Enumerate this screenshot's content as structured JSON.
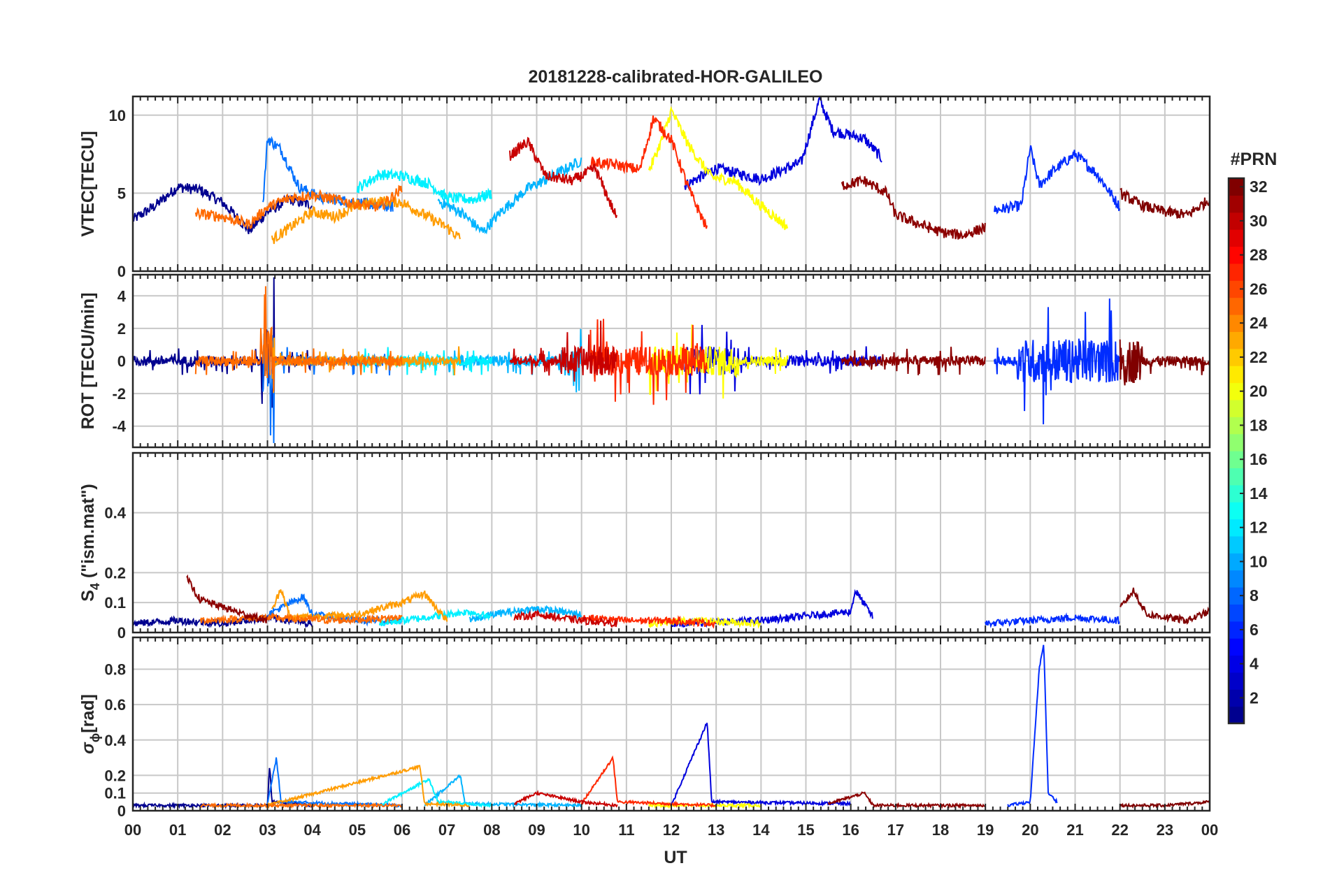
{
  "chart_data": {
    "type": "line",
    "title": "20181228-calibrated-HOR-GALILEO",
    "xlabel": "UT",
    "x_range_hours": [
      0,
      24
    ],
    "x_tick_labels": [
      "00",
      "01",
      "02",
      "03",
      "04",
      "05",
      "06",
      "07",
      "08",
      "09",
      "10",
      "11",
      "12",
      "13",
      "14",
      "15",
      "16",
      "17",
      "18",
      "19",
      "20",
      "21",
      "22",
      "23",
      "00"
    ],
    "grid": true,
    "colorbar": {
      "title": "#PRN",
      "colormap": "jet",
      "range": [
        1,
        32
      ],
      "ticks": [
        2,
        4,
        6,
        8,
        10,
        12,
        14,
        16,
        18,
        20,
        22,
        24,
        26,
        28,
        30,
        32
      ],
      "placement": "right"
    },
    "panels": [
      {
        "id": "vtec",
        "ylabel": "VTEC[TECU]",
        "ylim": [
          0,
          11.2
        ],
        "yticks": [
          0,
          5,
          10
        ],
        "ytick_labels": [
          "0",
          "5",
          "10"
        ]
      },
      {
        "id": "rot",
        "ylabel": "ROT [TECU/min]",
        "ylim": [
          -5.3,
          5.3
        ],
        "yticks": [
          -4,
          -2,
          0,
          2,
          4
        ],
        "ytick_labels": [
          "-4",
          "-2",
          "0",
          "2",
          "4"
        ]
      },
      {
        "id": "s4",
        "ylabel_main": "S",
        "ylabel_sub": "4",
        "ylabel_rest": " (\"ism.mat\")",
        "ylim": [
          0,
          0.6
        ],
        "yticks": [
          0,
          0.1,
          0.2,
          0.4
        ],
        "ytick_labels": [
          "0",
          "0.1",
          "0.2",
          "0.4"
        ]
      },
      {
        "id": "sigma",
        "ylabel_main": "σ",
        "ylabel_sub": "ϕ",
        "ylabel_rest": "[rad]",
        "ylim": [
          0,
          0.98
        ],
        "yticks": [
          0,
          0.1,
          0.2,
          0.4,
          0.6,
          0.8
        ],
        "ytick_labels": [
          "0",
          "0.1",
          "0.2",
          "0.4",
          "0.6",
          "0.8"
        ]
      }
    ],
    "series": [
      {
        "prn": 1,
        "color": "#00008f",
        "vtec": [
          [
            0.0,
            3.3
          ],
          [
            0.5,
            4.2
          ],
          [
            1.0,
            5.4
          ],
          [
            1.5,
            5.2
          ],
          [
            2.0,
            4.4
          ],
          [
            2.6,
            2.6
          ],
          [
            3.0,
            3.8
          ],
          [
            3.5,
            4.6
          ],
          [
            4.0,
            4.2
          ]
        ],
        "s4": [
          [
            0.0,
            0.03
          ],
          [
            1.0,
            0.04
          ],
          [
            2.0,
            0.03
          ],
          [
            3.0,
            0.05
          ],
          [
            4.0,
            0.03
          ]
        ],
        "sigma": [
          [
            0.0,
            0.03
          ],
          [
            3.0,
            0.03
          ],
          [
            3.05,
            0.26
          ],
          [
            3.1,
            0.05
          ],
          [
            4.0,
            0.03
          ]
        ]
      },
      {
        "prn": 3,
        "color": "#0000dd",
        "vtec": [
          [
            12.3,
            5.5
          ],
          [
            13.0,
            6.6
          ],
          [
            14.0,
            5.9
          ],
          [
            14.9,
            7.0
          ],
          [
            15.3,
            11.0
          ],
          [
            15.6,
            9.0
          ],
          [
            16.3,
            8.5
          ],
          [
            16.7,
            7.2
          ]
        ],
        "s4": [
          [
            12.0,
            0.03
          ],
          [
            14.0,
            0.04
          ],
          [
            16.0,
            0.07
          ],
          [
            16.1,
            0.14
          ],
          [
            16.5,
            0.05
          ]
        ],
        "sigma": [
          [
            12.0,
            0.03
          ],
          [
            12.8,
            0.5
          ],
          [
            12.9,
            0.05
          ],
          [
            16.0,
            0.04
          ]
        ]
      },
      {
        "prn": 5,
        "color": "#002cff",
        "vtec": [
          [
            19.2,
            3.9
          ],
          [
            19.8,
            4.2
          ],
          [
            20.0,
            7.9
          ],
          [
            20.2,
            5.5
          ],
          [
            20.5,
            6.4
          ],
          [
            21.0,
            7.5
          ],
          [
            21.5,
            6.2
          ],
          [
            22.0,
            4.1
          ]
        ],
        "s4": [
          [
            19.0,
            0.03
          ],
          [
            20.0,
            0.04
          ],
          [
            21.0,
            0.05
          ],
          [
            22.0,
            0.04
          ]
        ],
        "sigma": [
          [
            19.5,
            0.03
          ],
          [
            20.0,
            0.05
          ],
          [
            20.2,
            0.8
          ],
          [
            20.3,
            0.95
          ],
          [
            20.4,
            0.1
          ],
          [
            20.6,
            0.05
          ]
        ]
      },
      {
        "prn": 8,
        "color": "#0070ff",
        "vtec": [
          [
            2.9,
            4.3
          ],
          [
            3.0,
            8.5
          ],
          [
            3.3,
            7.8
          ],
          [
            3.7,
            5.4
          ],
          [
            4.2,
            4.7
          ],
          [
            5.0,
            4.4
          ],
          [
            5.8,
            4.1
          ]
        ],
        "s4": [
          [
            3.0,
            0.06
          ],
          [
            3.8,
            0.12
          ],
          [
            4.0,
            0.06
          ],
          [
            5.0,
            0.04
          ],
          [
            6.0,
            0.04
          ]
        ],
        "sigma": [
          [
            3.0,
            0.04
          ],
          [
            3.2,
            0.3
          ],
          [
            3.3,
            0.05
          ],
          [
            6.0,
            0.03
          ]
        ]
      },
      {
        "prn": 11,
        "color": "#00b4ff",
        "vtec": [
          [
            6.8,
            4.5
          ],
          [
            7.3,
            3.8
          ],
          [
            7.8,
            2.5
          ],
          [
            8.2,
            3.8
          ],
          [
            8.8,
            5.3
          ],
          [
            9.3,
            6.0
          ],
          [
            10.0,
            7.1
          ]
        ],
        "s4": [
          [
            7.5,
            0.04
          ],
          [
            8.0,
            0.06
          ],
          [
            9.0,
            0.08
          ],
          [
            10.0,
            0.06
          ]
        ],
        "sigma": [
          [
            6.5,
            0.03
          ],
          [
            7.3,
            0.2
          ],
          [
            7.4,
            0.04
          ],
          [
            10.0,
            0.03
          ]
        ]
      },
      {
        "prn": 13,
        "color": "#00f0ff",
        "vtec": [
          [
            5.0,
            5.3
          ],
          [
            5.5,
            6.2
          ],
          [
            6.0,
            6.1
          ],
          [
            6.6,
            5.6
          ],
          [
            7.0,
            4.7
          ],
          [
            7.6,
            4.6
          ],
          [
            8.0,
            5.0
          ]
        ],
        "s4": [
          [
            5.5,
            0.03
          ],
          [
            6.5,
            0.05
          ],
          [
            7.5,
            0.07
          ],
          [
            8.0,
            0.05
          ]
        ],
        "sigma": [
          [
            5.5,
            0.03
          ],
          [
            6.6,
            0.18
          ],
          [
            6.8,
            0.05
          ],
          [
            8.0,
            0.03
          ]
        ]
      },
      {
        "prn": 19,
        "color": "#ffff00",
        "vtec": [
          [
            11.5,
            6.4
          ],
          [
            11.8,
            8.5
          ],
          [
            12.0,
            10.3
          ],
          [
            12.4,
            8.0
          ],
          [
            12.9,
            6.0
          ],
          [
            13.4,
            5.8
          ],
          [
            14.0,
            4.2
          ],
          [
            14.6,
            2.8
          ]
        ],
        "s4": [
          [
            11.5,
            0.03
          ],
          [
            12.5,
            0.04
          ],
          [
            14.0,
            0.03
          ]
        ],
        "sigma": [
          [
            11.5,
            0.03
          ],
          [
            12.0,
            0.03
          ],
          [
            14.0,
            0.03
          ]
        ]
      },
      {
        "prn": 22,
        "color": "#ff9c00",
        "vtec": [
          [
            3.1,
            2.0
          ],
          [
            3.5,
            2.8
          ],
          [
            4.0,
            3.8
          ],
          [
            4.5,
            3.5
          ],
          [
            5.0,
            4.2
          ],
          [
            5.5,
            4.5
          ],
          [
            6.0,
            4.4
          ],
          [
            6.5,
            3.6
          ],
          [
            7.0,
            2.8
          ],
          [
            7.3,
            2.1
          ]
        ],
        "s4": [
          [
            3.1,
            0.07
          ],
          [
            3.3,
            0.15
          ],
          [
            3.5,
            0.05
          ],
          [
            5.0,
            0.06
          ],
          [
            6.0,
            0.1
          ],
          [
            6.5,
            0.13
          ],
          [
            7.0,
            0.04
          ]
        ],
        "sigma": [
          [
            3.0,
            0.03
          ],
          [
            6.4,
            0.25
          ],
          [
            6.5,
            0.04
          ],
          [
            7.5,
            0.03
          ]
        ]
      },
      {
        "prn": 24,
        "color": "#ff6a00",
        "vtec": [
          [
            1.4,
            3.7
          ],
          [
            2.0,
            3.5
          ],
          [
            2.6,
            3.0
          ],
          [
            3.0,
            4.1
          ],
          [
            3.5,
            4.7
          ],
          [
            4.0,
            4.9
          ],
          [
            4.5,
            4.6
          ],
          [
            5.0,
            4.3
          ],
          [
            5.5,
            4.1
          ],
          [
            6.0,
            5.3
          ]
        ],
        "s4": [
          [
            1.5,
            0.04
          ],
          [
            3.0,
            0.05
          ],
          [
            4.5,
            0.04
          ],
          [
            6.0,
            0.05
          ]
        ],
        "sigma": [
          [
            1.5,
            0.03
          ],
          [
            4.0,
            0.03
          ],
          [
            6.0,
            0.03
          ]
        ]
      },
      {
        "prn": 26,
        "color": "#ff2800",
        "vtec": [
          [
            10.2,
            7.0
          ],
          [
            10.8,
            6.8
          ],
          [
            11.3,
            6.5
          ],
          [
            11.6,
            9.8
          ],
          [
            12.0,
            8.4
          ],
          [
            12.4,
            5.2
          ],
          [
            12.8,
            2.7
          ]
        ],
        "s4": [
          [
            10.0,
            0.05
          ],
          [
            11.0,
            0.04
          ],
          [
            12.0,
            0.04
          ],
          [
            13.0,
            0.03
          ]
        ],
        "sigma": [
          [
            10.0,
            0.04
          ],
          [
            10.7,
            0.3
          ],
          [
            10.8,
            0.05
          ],
          [
            13.0,
            0.03
          ]
        ]
      },
      {
        "prn": 29,
        "color": "#c80000",
        "vtec": [
          [
            8.4,
            7.4
          ],
          [
            8.8,
            8.3
          ],
          [
            9.2,
            6.1
          ],
          [
            9.8,
            5.8
          ],
          [
            10.3,
            6.6
          ],
          [
            10.8,
            3.3
          ]
        ],
        "s4": [
          [
            8.5,
            0.05
          ],
          [
            9.0,
            0.06
          ],
          [
            10.0,
            0.04
          ],
          [
            10.8,
            0.03
          ]
        ],
        "sigma": [
          [
            8.5,
            0.04
          ],
          [
            9.0,
            0.1
          ],
          [
            10.0,
            0.05
          ],
          [
            10.8,
            0.03
          ]
        ]
      },
      {
        "prn": 31,
        "color": "#8c0000",
        "vtec": [
          [
            15.8,
            5.5
          ],
          [
            16.3,
            5.8
          ],
          [
            16.8,
            5.0
          ],
          [
            17.0,
            3.6
          ],
          [
            18.0,
            2.5
          ],
          [
            18.5,
            2.3
          ],
          [
            19.0,
            2.8
          ]
        ],
        "s4": [
          [
            1.2,
            0.18
          ],
          [
            1.5,
            0.11
          ],
          [
            2.5,
            0.06
          ],
          [
            3.0,
            0.04
          ]
        ],
        "sigma": [
          [
            15.5,
            0.04
          ],
          [
            16.3,
            0.1
          ],
          [
            16.5,
            0.03
          ],
          [
            19.0,
            0.03
          ]
        ]
      },
      {
        "prn": 32,
        "color": "#800000",
        "vtec": [
          [
            22.0,
            5.0
          ],
          [
            22.5,
            4.2
          ],
          [
            23.0,
            3.8
          ],
          [
            23.5,
            3.6
          ],
          [
            24.0,
            4.6
          ]
        ],
        "s4": [
          [
            22.0,
            0.08
          ],
          [
            22.3,
            0.14
          ],
          [
            22.6,
            0.06
          ],
          [
            23.5,
            0.04
          ],
          [
            24.0,
            0.07
          ]
        ],
        "sigma": [
          [
            22.0,
            0.03
          ],
          [
            23.0,
            0.03
          ],
          [
            24.0,
            0.05
          ]
        ]
      }
    ]
  }
}
